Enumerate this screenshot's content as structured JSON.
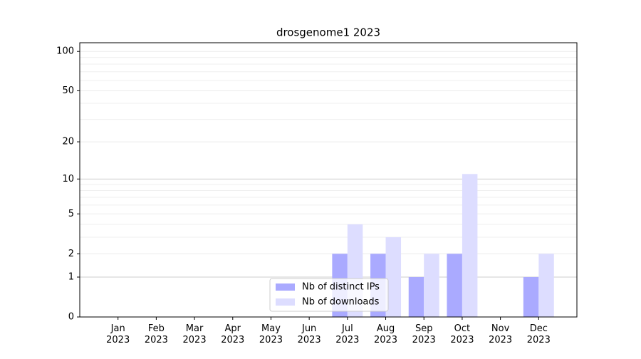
{
  "chart_data": {
    "type": "bar",
    "title": "drosgenome1 2023",
    "categories": [
      "Jan 2023",
      "Feb 2023",
      "Mar 2023",
      "Apr 2023",
      "May 2023",
      "Jun 2023",
      "Jul 2023",
      "Aug 2023",
      "Sep 2023",
      "Oct 2023",
      "Nov 2023",
      "Dec 2023"
    ],
    "series": [
      {
        "name": "Nb of distinct IPs",
        "color": "#aaaaff",
        "values": [
          0,
          0,
          0,
          0,
          0,
          0,
          2,
          2,
          1,
          2,
          0,
          1
        ]
      },
      {
        "name": "Nb of downloads",
        "color": "#ddddff",
        "values": [
          0,
          0,
          0,
          0,
          0,
          0,
          4,
          3,
          2,
          11,
          0,
          2
        ]
      }
    ],
    "yscale": "log1p",
    "ylim": [
      0,
      116.5
    ],
    "yticks": [
      0,
      1,
      2,
      5,
      10,
      20,
      50,
      100
    ],
    "minor_yticks": [
      3,
      4,
      6,
      7,
      8,
      9,
      30,
      40,
      60,
      70,
      80,
      90
    ],
    "grid": true,
    "legend": "lower center"
  }
}
